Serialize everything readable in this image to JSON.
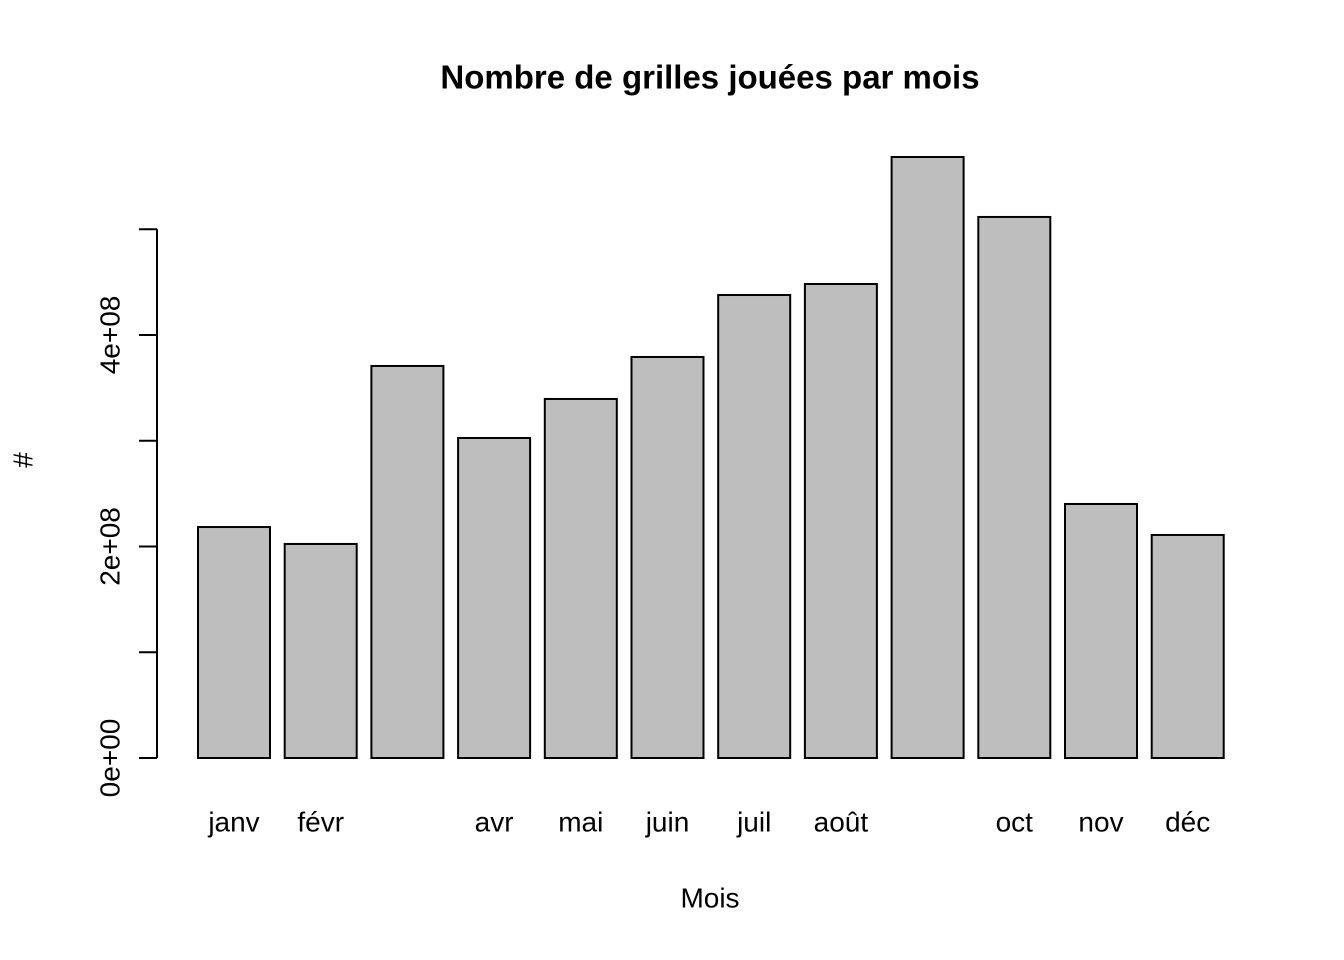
{
  "chart_data": {
    "type": "bar",
    "title": "Nombre de grilles jouées par mois",
    "xlabel": "Mois",
    "ylabel": "#",
    "categories": [
      "janv",
      "févr",
      null,
      "avr",
      "mai",
      "juin",
      "juil",
      "août",
      null,
      "oct",
      "nov",
      "déc"
    ],
    "values": [
      218400000,
      202400000,
      370700000,
      302600000,
      339500000,
      379200000,
      437800000,
      448200000,
      568300000,
      511600000,
      240200000,
      210900000
    ],
    "color": "#bebebe",
    "ylim": [
      0,
      568300000
    ],
    "yticks": [
      {
        "value": 0,
        "label": "0e+00"
      },
      {
        "value": 200000000,
        "label": "2e+08"
      },
      {
        "value": 400000000,
        "label": "4e+08"
      }
    ],
    "yminor_ticks": [
      100000000,
      300000000,
      500000000
    ],
    "grid": false
  }
}
